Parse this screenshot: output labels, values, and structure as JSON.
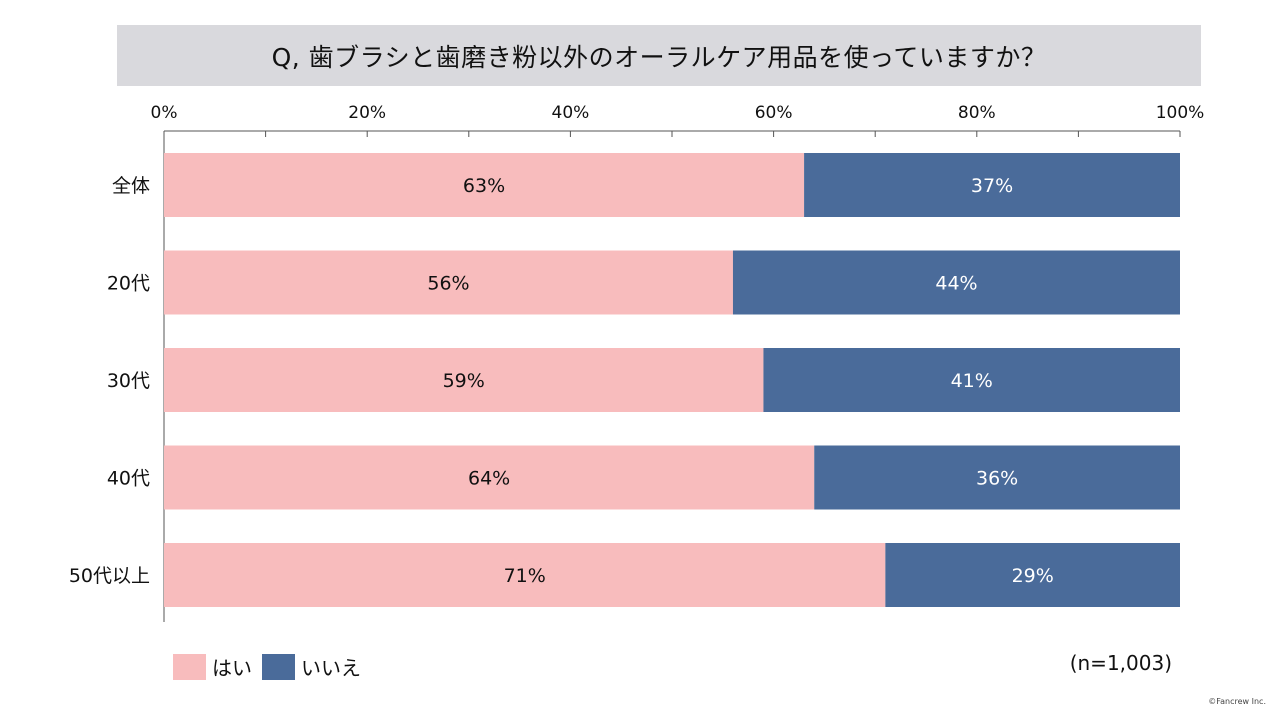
{
  "title": "Q, 歯ブラシと歯磨き粉以外のオーラルケア用品を使っていますか？",
  "sample_size": "(n=1,003)",
  "copyright": "©Fancrew Inc.",
  "colors": {
    "yes": "#f8bcbd",
    "no": "#4a6b9a",
    "title_bg": "#d9d9dd"
  },
  "chart_data": {
    "type": "bar",
    "orientation": "horizontal",
    "stacked": true,
    "categories": [
      "全体",
      "20代",
      "30代",
      "40代",
      "50代以上"
    ],
    "series": [
      {
        "name": "はい",
        "values": [
          63,
          56,
          59,
          64,
          71
        ]
      },
      {
        "name": "いいえ",
        "values": [
          37,
          44,
          41,
          36,
          29
        ]
      }
    ],
    "data_labels": [
      [
        "63%",
        "56%",
        "59%",
        "64%",
        "71%"
      ],
      [
        "37%",
        "44%",
        "41%",
        "36%",
        "29%"
      ]
    ],
    "xlim": [
      0,
      100
    ],
    "x_ticks": [
      0,
      20,
      40,
      60,
      80,
      100
    ],
    "x_tick_labels": [
      "0%",
      "20%",
      "40%",
      "60%",
      "80%",
      "100%"
    ],
    "axis_position": "top",
    "legend": [
      "はい",
      "いいえ"
    ],
    "legend_position": "bottom-left"
  }
}
